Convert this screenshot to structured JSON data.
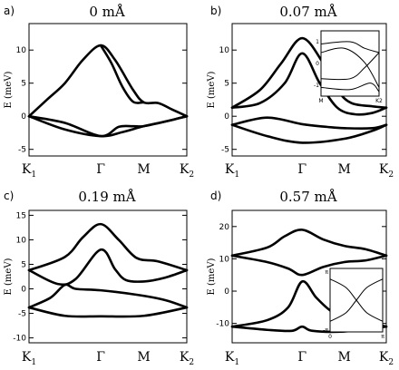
{
  "chart_data": [
    {
      "type": "line",
      "panel": "a)",
      "title": "0 mÅ",
      "ylabel": "E (meV)",
      "x_ticks": [
        {
          "label": "K",
          "sub": "1",
          "k": 0
        },
        {
          "label": "Γ",
          "sub": "",
          "k": 1
        },
        {
          "label": "M",
          "sub": "",
          "k": 1.6
        },
        {
          "label": "K",
          "sub": "2",
          "k": 2.2
        }
      ],
      "ylim": [
        -6,
        14
      ],
      "yticks": [
        -5,
        0,
        5,
        10
      ],
      "series": [
        {
          "values": [
            [
              0,
              0
            ],
            [
              0.25,
              2.5
            ],
            [
              0.5,
              5
            ],
            [
              0.75,
              8.5
            ],
            [
              1,
              10.7
            ],
            [
              1.2,
              8.5
            ],
            [
              1.45,
              4
            ],
            [
              1.6,
              2.1
            ],
            [
              1.8,
              2
            ],
            [
              2.0,
              1
            ],
            [
              2.2,
              0
            ]
          ]
        },
        {
          "values": [
            [
              0,
              0
            ],
            [
              0.5,
              -2
            ],
            [
              1,
              -3
            ],
            [
              1.3,
              -2.4
            ],
            [
              1.6,
              -1.5
            ],
            [
              1.9,
              -0.8
            ],
            [
              2.2,
              0
            ]
          ]
        },
        {
          "values": [
            [
              0,
              0
            ],
            [
              0.5,
              -1
            ],
            [
              1,
              -3
            ],
            [
              1.25,
              -1.6
            ],
            [
              1.45,
              -1.5
            ],
            [
              1.6,
              -1.5
            ],
            [
              1.9,
              -0.8
            ],
            [
              2.2,
              0
            ]
          ]
        },
        {
          "values": [
            [
              1,
              10.7
            ],
            [
              1.15,
              8
            ],
            [
              1.3,
              4.5
            ],
            [
              1.45,
              2.2
            ],
            [
              1.6,
              2.1
            ]
          ]
        }
      ]
    },
    {
      "type": "line",
      "panel": "b)",
      "title": "0.07 mÅ",
      "ylabel": "E (meV)",
      "x_ticks": [
        {
          "label": "K",
          "sub": "1",
          "k": 0
        },
        {
          "label": "Γ",
          "sub": "",
          "k": 1
        },
        {
          "label": "M",
          "sub": "",
          "k": 1.6
        },
        {
          "label": "K",
          "sub": "2",
          "k": 2.2
        }
      ],
      "ylim": [
        -6,
        14
      ],
      "yticks": [
        -5,
        0,
        5,
        10
      ],
      "series": [
        {
          "values": [
            [
              0,
              1.3
            ],
            [
              0.4,
              4
            ],
            [
              0.7,
              8
            ],
            [
              1,
              11.8
            ],
            [
              1.3,
              8
            ],
            [
              1.5,
              4
            ],
            [
              1.7,
              2
            ],
            [
              2.0,
              1.5
            ],
            [
              2.2,
              1.3
            ]
          ]
        },
        {
          "values": [
            [
              0,
              1.3
            ],
            [
              0.4,
              2
            ],
            [
              0.75,
              5
            ],
            [
              1,
              9.5
            ],
            [
              1.25,
              5
            ],
            [
              1.5,
              1.3
            ],
            [
              1.75,
              0.3
            ],
            [
              2.0,
              0.5
            ],
            [
              2.2,
              1.3
            ]
          ]
        },
        {
          "values": [
            [
              0,
              -1.3
            ],
            [
              0.5,
              -0.2
            ],
            [
              1,
              -1.2
            ],
            [
              1.35,
              -1.6
            ],
            [
              1.6,
              -1.8
            ],
            [
              2.0,
              -1.8
            ],
            [
              2.2,
              -1.3
            ]
          ]
        },
        {
          "values": [
            [
              0,
              -1.3
            ],
            [
              0.5,
              -3
            ],
            [
              1,
              -4
            ],
            [
              1.6,
              -3.4
            ],
            [
              2.0,
              -2.2
            ],
            [
              2.2,
              -1.3
            ]
          ]
        }
      ],
      "inset": {
        "x_ticks": [
          "M",
          "K2"
        ],
        "y_ticks": [
          "1",
          "0",
          "-1"
        ],
        "series": [
          {
            "values": [
              [
                0,
                0.9
              ],
              [
                0.5,
                1.0
              ],
              [
                0.75,
                0.7
              ],
              [
                1,
                0.5
              ]
            ]
          },
          {
            "values": [
              [
                0,
                0.5
              ],
              [
                0.4,
                0.7
              ],
              [
                0.75,
                0.05
              ],
              [
                1,
                -1.1
              ]
            ]
          },
          {
            "values": [
              [
                0,
                -0.7
              ],
              [
                0.5,
                -0.7
              ],
              [
                0.75,
                -0.2
              ],
              [
                1,
                0.5
              ]
            ]
          },
          {
            "values": [
              [
                0,
                -1.1
              ],
              [
                0.5,
                -1.2
              ],
              [
                0.85,
                -0.9
              ],
              [
                1,
                -1.3
              ]
            ]
          }
        ]
      }
    },
    {
      "type": "line",
      "panel": "c)",
      "title": "0.19 mÅ",
      "ylabel": "E (meV)",
      "x_ticks": [
        {
          "label": "K",
          "sub": "1",
          "k": 0
        },
        {
          "label": "Γ",
          "sub": "",
          "k": 1
        },
        {
          "label": "M",
          "sub": "",
          "k": 1.6
        },
        {
          "label": "K",
          "sub": "2",
          "k": 2.2
        }
      ],
      "ylim": [
        -11,
        16
      ],
      "yticks": [
        -10,
        -5,
        0,
        5,
        10,
        15
      ],
      "series": [
        {
          "values": [
            [
              0,
              3.8
            ],
            [
              0.5,
              6.5
            ],
            [
              0.75,
              10.5
            ],
            [
              1,
              13.2
            ],
            [
              1.25,
              10
            ],
            [
              1.5,
              6.3
            ],
            [
              1.8,
              5.6
            ],
            [
              2.2,
              3.8
            ]
          ]
        },
        {
          "values": [
            [
              0,
              3.8
            ],
            [
              0.4,
              1
            ],
            [
              0.65,
              2
            ],
            [
              1,
              8
            ],
            [
              1.2,
              4
            ],
            [
              1.35,
              1.8
            ],
            [
              1.6,
              1.5
            ],
            [
              1.9,
              2.3
            ],
            [
              2.2,
              3.8
            ]
          ]
        },
        {
          "values": [
            [
              0,
              -3.8
            ],
            [
              0.3,
              -1.8
            ],
            [
              0.5,
              0.8
            ],
            [
              0.65,
              0
            ],
            [
              1,
              -0.3
            ],
            [
              1.5,
              -1.2
            ],
            [
              1.9,
              -2.3
            ],
            [
              2.2,
              -3.8
            ]
          ]
        },
        {
          "values": [
            [
              0,
              -3.8
            ],
            [
              0.5,
              -5.5
            ],
            [
              1,
              -5.6
            ],
            [
              1.6,
              -5.5
            ],
            [
              2.2,
              -3.8
            ]
          ]
        }
      ]
    },
    {
      "type": "line",
      "panel": "d)",
      "title": "0.57 mÅ",
      "ylabel": "E (meV)",
      "x_ticks": [
        {
          "label": "K",
          "sub": "1",
          "k": 0
        },
        {
          "label": "Γ",
          "sub": "",
          "k": 1
        },
        {
          "label": "M",
          "sub": "",
          "k": 1.6
        },
        {
          "label": "K",
          "sub": "2",
          "k": 2.2
        }
      ],
      "ylim": [
        -16,
        25
      ],
      "yticks": [
        -10,
        0,
        10,
        20
      ],
      "series": [
        {
          "values": [
            [
              0,
              11
            ],
            [
              0.5,
              13.5
            ],
            [
              0.75,
              17
            ],
            [
              1,
              19
            ],
            [
              1.3,
              16
            ],
            [
              1.6,
              14
            ],
            [
              1.9,
              13
            ],
            [
              2.2,
              11
            ]
          ]
        },
        {
          "values": [
            [
              0,
              11
            ],
            [
              0.5,
              9
            ],
            [
              0.8,
              7
            ],
            [
              1,
              5
            ],
            [
              1.3,
              7.5
            ],
            [
              1.6,
              9
            ],
            [
              1.9,
              9.5
            ],
            [
              2.2,
              11
            ]
          ]
        },
        {
          "values": [
            [
              0,
              -11
            ],
            [
              0.5,
              -9
            ],
            [
              0.8,
              -5
            ],
            [
              1,
              3
            ],
            [
              1.2,
              -2
            ],
            [
              1.4,
              -6
            ],
            [
              1.6,
              -8
            ],
            [
              1.9,
              -9.5
            ],
            [
              2.2,
              -11
            ]
          ]
        },
        {
          "values": [
            [
              0,
              -11
            ],
            [
              0.5,
              -12
            ],
            [
              0.85,
              -12.3
            ],
            [
              1,
              -11
            ],
            [
              1.15,
              -12.3
            ],
            [
              1.6,
              -12.5
            ],
            [
              2.2,
              -11
            ]
          ]
        }
      ],
      "inset": {
        "x_ticks": [
          "0",
          "π"
        ],
        "y_ticks": [
          "π",
          "-π"
        ],
        "series": [
          {
            "values": [
              [
                0,
                1
              ],
              [
                0.3,
                0.6
              ],
              [
                0.5,
                0
              ],
              [
                0.7,
                -0.6
              ],
              [
                1,
                -1
              ]
            ]
          },
          {
            "values": [
              [
                0,
                -1
              ],
              [
                0.3,
                -0.6
              ],
              [
                0.5,
                0
              ],
              [
                0.7,
                0.6
              ],
              [
                1,
                1
              ]
            ]
          }
        ]
      }
    }
  ]
}
